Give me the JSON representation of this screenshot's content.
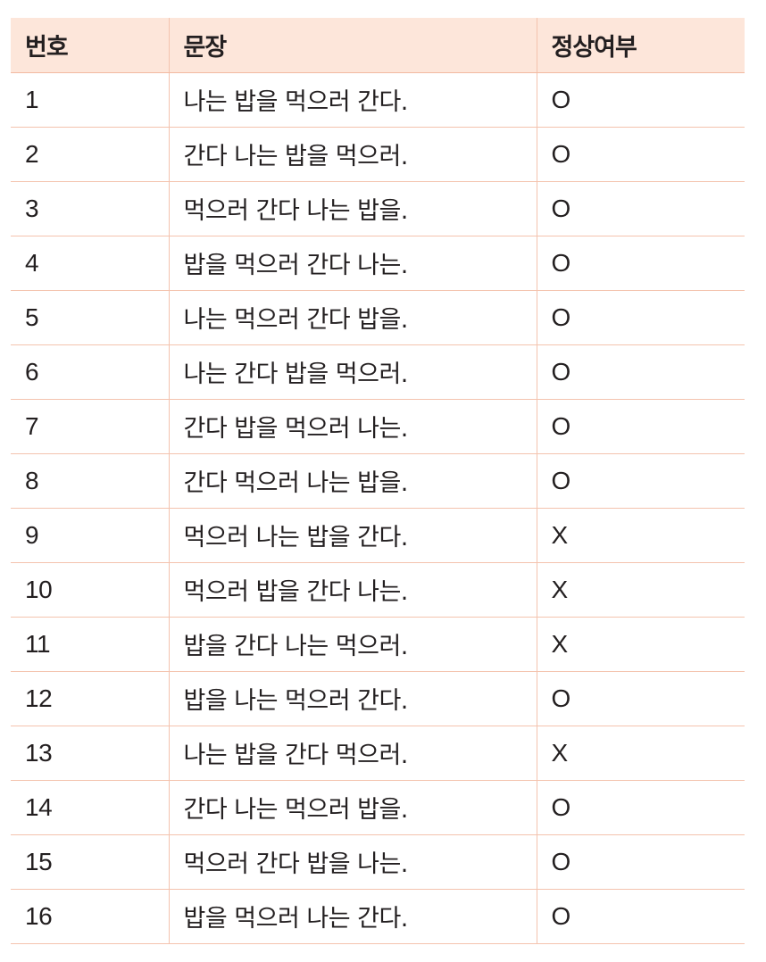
{
  "table": {
    "headers": [
      "번호",
      "문장",
      "정상여부"
    ],
    "rows": [
      {
        "num": "1",
        "sentence": "나는 밥을 먹으러 간다.",
        "ok": "O"
      },
      {
        "num": "2",
        "sentence": "간다 나는 밥을 먹으러.",
        "ok": "O"
      },
      {
        "num": "3",
        "sentence": "먹으러 간다 나는 밥을.",
        "ok": "O"
      },
      {
        "num": "4",
        "sentence": "밥을 먹으러 간다 나는.",
        "ok": "O"
      },
      {
        "num": "5",
        "sentence": "나는 먹으러 간다 밥을.",
        "ok": "O"
      },
      {
        "num": "6",
        "sentence": "나는 간다 밥을 먹으러.",
        "ok": "O"
      },
      {
        "num": "7",
        "sentence": "간다 밥을 먹으러 나는.",
        "ok": "O"
      },
      {
        "num": "8",
        "sentence": "간다 먹으러 나는 밥을.",
        "ok": "O"
      },
      {
        "num": "9",
        "sentence": "먹으러 나는 밥을 간다.",
        "ok": "X"
      },
      {
        "num": "10",
        "sentence": "먹으러 밥을 간다 나는.",
        "ok": "X"
      },
      {
        "num": "11",
        "sentence": "밥을 간다 나는 먹으러.",
        "ok": "X"
      },
      {
        "num": "12",
        "sentence": "밥을 나는 먹으러 간다.",
        "ok": "O"
      },
      {
        "num": "13",
        "sentence": "나는 밥을 간다 먹으러.",
        "ok": "X"
      },
      {
        "num": "14",
        "sentence": "간다 나는 먹으러 밥을.",
        "ok": "O"
      },
      {
        "num": "15",
        "sentence": "먹으러 간다 밥을 나는.",
        "ok": "O"
      },
      {
        "num": "16",
        "sentence": "밥을 먹으러 나는 간다.",
        "ok": "O"
      }
    ]
  },
  "colors": {
    "header_bg": "#fde6da",
    "rule": "#f4c3ae",
    "text": "#231f20"
  }
}
